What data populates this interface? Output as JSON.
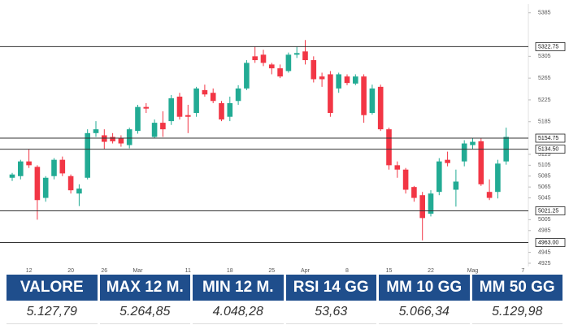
{
  "chart_data": {
    "type": "candlestick",
    "categories": [
      null,
      null,
      "12",
      null,
      null,
      null,
      null,
      "20",
      null,
      null,
      null,
      "26",
      null,
      null,
      null,
      "Mar",
      null,
      null,
      null,
      null,
      null,
      "11",
      null,
      null,
      null,
      null,
      "18",
      null,
      null,
      null,
      null,
      "25",
      null,
      null,
      null,
      "Apr",
      null,
      null,
      null,
      null,
      "8",
      null,
      null,
      null,
      null,
      "15",
      null,
      null,
      null,
      null,
      "22",
      null,
      null,
      null,
      null,
      "Mag",
      null,
      null,
      null,
      null,
      null,
      "7"
    ],
    "open": [
      5082,
      5085,
      5112,
      5102,
      5045,
      5085,
      5115,
      5085,
      5053,
      5082,
      5164,
      5160,
      5157,
      5154,
      5142,
      5168,
      5212,
      5157,
      5183,
      5186,
      5231,
      5197,
      5201,
      5243,
      5238,
      5219,
      5194,
      5223,
      5246,
      5305,
      5308,
      5290,
      5283,
      5278,
      5308,
      5314,
      5298,
      5268,
      5272,
      5246,
      5268,
      5255,
      5268,
      5201,
      5249,
      5171,
      5105,
      5097,
      5065,
      5050,
      5016,
      5056,
      5115,
      5060,
      5112,
      5142,
      5149,
      5056,
      5056,
      5112,
      null,
      null
    ],
    "high": [
      5091,
      5115,
      5134,
      5105,
      5085,
      5118,
      5121,
      5088,
      5070,
      5171,
      5186,
      5171,
      5164,
      5160,
      5174,
      5216,
      5219,
      5189,
      5204,
      5234,
      5238,
      5216,
      5249,
      5253,
      5246,
      5223,
      5231,
      5252,
      5298,
      5323,
      5317,
      5293,
      5290,
      5312,
      5323,
      5335,
      5305,
      5275,
      5278,
      5275,
      5272,
      5272,
      5272,
      5253,
      5253,
      5174,
      5112,
      5100,
      5067,
      5056,
      5059,
      5118,
      5130,
      5097,
      5151,
      5154,
      5154,
      5079,
      5115,
      5174,
      null,
      null
    ],
    "low": [
      5076,
      5079,
      5100,
      5005,
      5038,
      5079,
      5085,
      5053,
      5030,
      5079,
      5157,
      5134,
      5145,
      5139,
      5136,
      5163,
      5201,
      5154,
      5157,
      5179,
      5189,
      5164,
      5194,
      5231,
      5219,
      5186,
      5186,
      5216,
      5243,
      5293,
      5287,
      5272,
      5265,
      5275,
      5302,
      5290,
      5257,
      5249,
      5194,
      5238,
      5252,
      5252,
      5183,
      5198,
      5168,
      5097,
      5082,
      5053,
      5038,
      4967,
      5011,
      5050,
      5103,
      5029,
      5103,
      5134,
      5067,
      5041,
      5044,
      5106,
      null,
      null
    ],
    "close": [
      5088,
      5112,
      5105,
      5041,
      5082,
      5115,
      5090,
      5059,
      5062,
      5164,
      5171,
      5148,
      5149,
      5145,
      5171,
      5212,
      5209,
      5183,
      5171,
      5228,
      5194,
      5194,
      5246,
      5235,
      5223,
      5189,
      5219,
      5246,
      5293,
      5298,
      5293,
      5283,
      5268,
      5308,
      5311,
      5298,
      5263,
      5263,
      5201,
      5272,
      5256,
      5268,
      5197,
      5246,
      5171,
      5105,
      5097,
      5060,
      5045,
      5008,
      5053,
      5112,
      5109,
      5075,
      5145,
      5148,
      5070,
      5045,
      5108,
      5157,
      null,
      null
    ],
    "up_color": "#22ab94",
    "down_color": "#f23645",
    "ylim": [
      4919,
      5401
    ],
    "yticks": [
      4925,
      4945,
      4985,
      5005,
      5045,
      5065,
      5085,
      5105,
      5125,
      5185,
      5225,
      5265,
      5305,
      5385
    ],
    "levels": [
      {
        "value": 5322.75,
        "label": "5322.75"
      },
      {
        "value": 5154.75,
        "label": "5154.75"
      },
      {
        "value": 5134.5,
        "label": "5134.50"
      },
      {
        "value": 5021.25,
        "label": "5021.25"
      },
      {
        "value": 4963,
        "label": "4963.00"
      }
    ]
  },
  "table": {
    "headers": [
      "VALORE",
      "MAX 12 M.",
      "MIN 12 M.",
      "RSI 14 GG",
      "MM 10 GG",
      "MM 50 GG"
    ],
    "rows": [
      [
        "5.127,79",
        "5.264,85",
        "4.048,28",
        "53,63",
        "5.066,34",
        "5.129,98"
      ]
    ]
  }
}
